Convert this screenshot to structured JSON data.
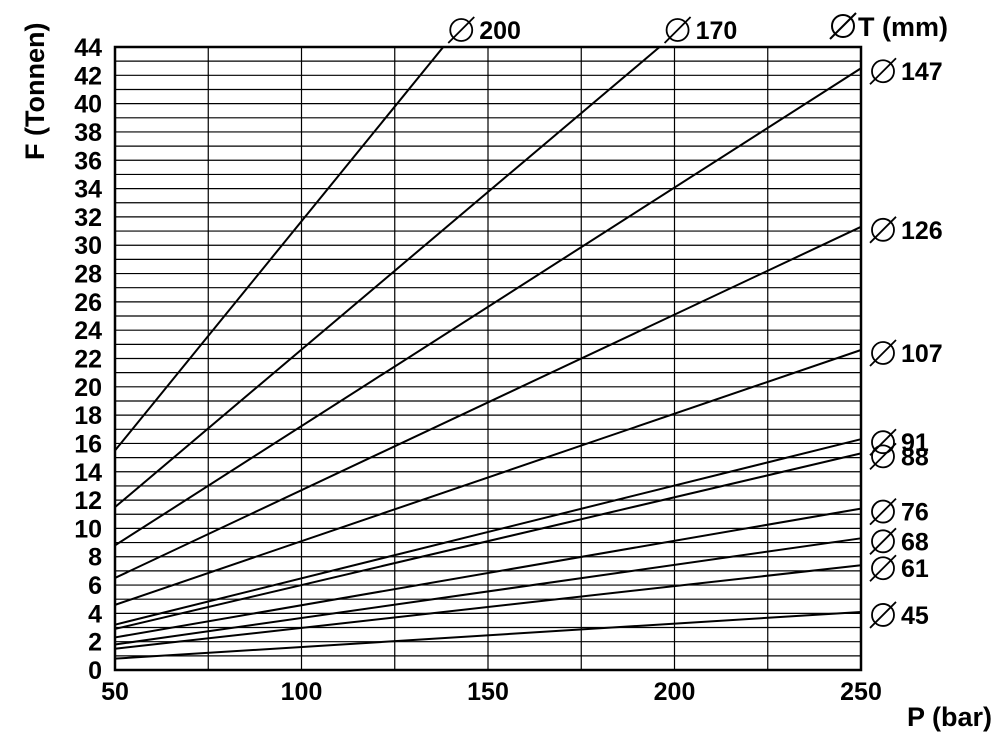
{
  "chart_data": {
    "type": "line",
    "xlabel": "P (bar)",
    "ylabel": "F (Tonnen)",
    "legend_title": "T (mm)",
    "xlim": [
      50,
      250
    ],
    "ylim": [
      0,
      44
    ],
    "x_ticks": [
      50,
      100,
      150,
      200,
      250
    ],
    "y_ticks": [
      0,
      2,
      4,
      6,
      8,
      10,
      12,
      14,
      16,
      18,
      20,
      22,
      24,
      26,
      28,
      30,
      32,
      34,
      36,
      38,
      40,
      42,
      44
    ],
    "x_minor_grid_step": 25,
    "y_minor_grid_step": 1,
    "grid": true,
    "series": [
      {
        "name": "200",
        "label": "200",
        "x": [
          50,
          138
        ],
        "y": [
          15.5,
          44
        ]
      },
      {
        "name": "170",
        "label": "170",
        "x": [
          50,
          196
        ],
        "y": [
          11.5,
          44
        ]
      },
      {
        "name": "147",
        "label": "147",
        "x": [
          50,
          250
        ],
        "y": [
          8.8,
          42.5
        ]
      },
      {
        "name": "126",
        "label": "126",
        "x": [
          50,
          250
        ],
        "y": [
          6.5,
          31.3
        ]
      },
      {
        "name": "107",
        "label": "107",
        "x": [
          50,
          250
        ],
        "y": [
          4.6,
          22.6
        ]
      },
      {
        "name": "91",
        "label": "91",
        "x": [
          50,
          250
        ],
        "y": [
          3.2,
          16.3
        ]
      },
      {
        "name": "88",
        "label": "88",
        "x": [
          50,
          250
        ],
        "y": [
          2.9,
          15.3
        ]
      },
      {
        "name": "76",
        "label": "76",
        "x": [
          50,
          250
        ],
        "y": [
          2.3,
          11.4
        ]
      },
      {
        "name": "68",
        "label": "68",
        "x": [
          50,
          250
        ],
        "y": [
          1.8,
          9.3
        ]
      },
      {
        "name": "61",
        "label": "61",
        "x": [
          50,
          250
        ],
        "y": [
          1.5,
          7.4
        ]
      },
      {
        "name": "45",
        "label": "45",
        "x": [
          50,
          250
        ],
        "y": [
          0.8,
          4.1
        ]
      }
    ]
  }
}
